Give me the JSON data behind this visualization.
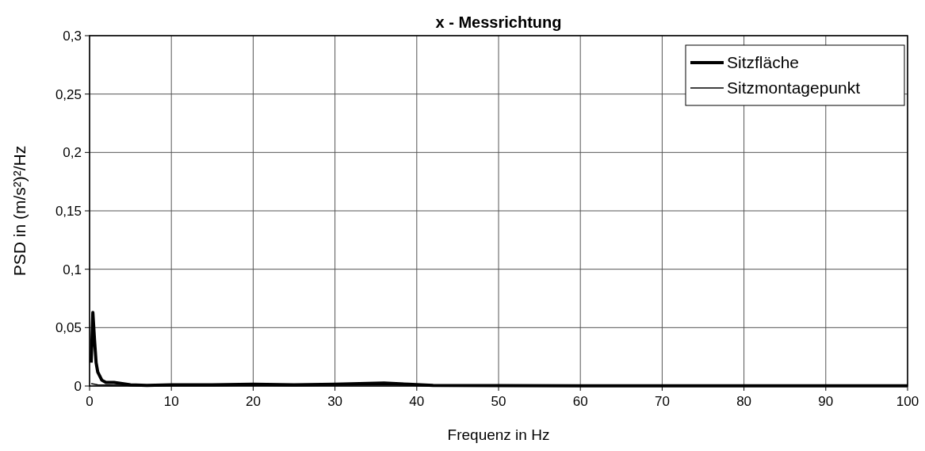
{
  "chart_data": {
    "type": "line",
    "title": "x - Messrichtung",
    "xlabel": "Frequenz in Hz",
    "ylabel": "PSD in (m/s²)²/Hz",
    "xlim": [
      0,
      100
    ],
    "xticks": [
      0,
      10,
      20,
      30,
      40,
      50,
      60,
      70,
      80,
      90,
      100
    ],
    "ylim": [
      0,
      0.3
    ],
    "yticks": [
      0,
      {
        "value": 0.05,
        "label": "0,05"
      },
      {
        "value": 0.1,
        "label": "0,1"
      },
      {
        "value": 0.15,
        "label": "0,15"
      },
      {
        "value": 0.2,
        "label": "0,2"
      },
      {
        "value": 0.25,
        "label": "0,25"
      },
      {
        "value": 0.3,
        "label": "0,3"
      }
    ],
    "grid": true,
    "legend": "top right",
    "line_style": "solid",
    "series": [
      {
        "name": "Sitzfläche",
        "color": "#000000",
        "x": [
          0.2,
          0.4,
          0.6,
          0.8,
          1,
          1.5,
          2,
          3,
          4,
          5,
          7,
          10,
          15,
          20,
          25,
          30,
          33,
          36,
          39,
          42,
          50,
          60,
          70,
          80,
          100
        ],
        "values": [
          0.02,
          0.063,
          0.04,
          0.02,
          0.012,
          0.005,
          0.003,
          0.003,
          0.002,
          0.001,
          0.0005,
          0.001,
          0.001,
          0.0015,
          0.001,
          0.0015,
          0.002,
          0.0025,
          0.0015,
          0.0005,
          0.0003,
          0.0002,
          0.0002,
          0.0001,
          0.0001
        ]
      },
      {
        "name": "Sitzmontagepunkt",
        "color": "#000000",
        "x": [
          0.2,
          1,
          5,
          20,
          36,
          50,
          100
        ],
        "values": [
          0.002,
          0.001,
          0.0005,
          0.0005,
          0.001,
          0.0002,
          0.0001
        ]
      }
    ]
  }
}
